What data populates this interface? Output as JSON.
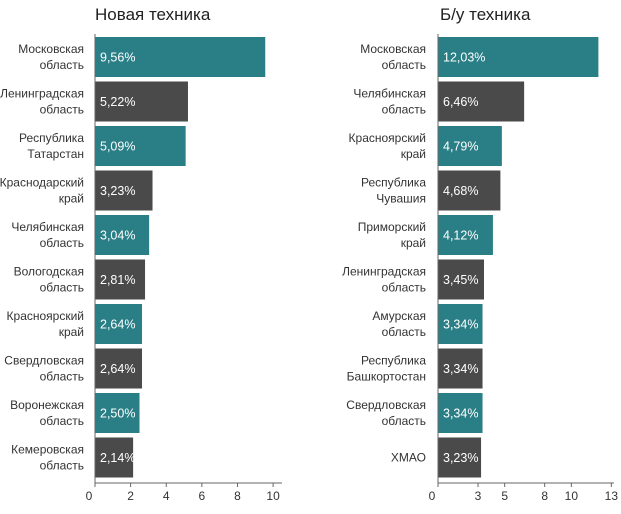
{
  "colors": {
    "teal": "#2a7f86",
    "dark": "#4a4a4a",
    "axis": "#666666",
    "text": "#333333"
  },
  "chart_data": [
    {
      "type": "bar",
      "orientation": "horizontal",
      "title": "Новая техника",
      "categories": [
        [
          "Московская",
          "область"
        ],
        [
          "Ленинградская",
          "область"
        ],
        [
          "Республика",
          "Татарстан"
        ],
        [
          "Краснодарский",
          "край"
        ],
        [
          "Челябинская",
          "область"
        ],
        [
          "Вологодская",
          "область"
        ],
        [
          "Красноярский",
          "край"
        ],
        [
          "Свердловская",
          "область"
        ],
        [
          "Воронежская",
          "область"
        ],
        [
          "Кемеровская",
          "область"
        ]
      ],
      "values": [
        9.56,
        5.22,
        5.09,
        3.23,
        3.04,
        2.81,
        2.64,
        2.64,
        2.5,
        2.14
      ],
      "value_labels": [
        "9,56%",
        "5,22%",
        "5,09%",
        "3,23%",
        "3,04%",
        "2,81%",
        "2,64%",
        "2,64%",
        "2,50%",
        "2,14%"
      ],
      "bar_colors": [
        "teal",
        "dark",
        "teal",
        "dark",
        "teal",
        "dark",
        "teal",
        "dark",
        "teal",
        "dark"
      ],
      "xlim": [
        0,
        10.5
      ],
      "xticks": [
        0,
        2,
        4,
        6,
        8,
        10
      ],
      "xtick_labels": [
        "0",
        "2",
        "4",
        "6",
        "8",
        "10"
      ],
      "grid": false
    },
    {
      "type": "bar",
      "orientation": "horizontal",
      "title": "Б/у техника",
      "categories": [
        [
          "Московская",
          "область"
        ],
        [
          "Челябинская",
          "область"
        ],
        [
          "Красноярский",
          "край"
        ],
        [
          "Республика",
          "Чувашия"
        ],
        [
          "Приморский",
          "край"
        ],
        [
          "Ленинградская",
          "область"
        ],
        [
          "Амурская",
          "область"
        ],
        [
          "Республика",
          "Башкортостан"
        ],
        [
          "Свердловская",
          "область"
        ],
        [
          "ХМАО"
        ]
      ],
      "values": [
        12.03,
        6.46,
        4.79,
        4.68,
        4.12,
        3.45,
        3.34,
        3.34,
        3.34,
        3.23
      ],
      "value_labels": [
        "12,03%",
        "6,46%",
        "4,79%",
        "4,68%",
        "4,12%",
        "3,45%",
        "3,34%",
        "3,34%",
        "3,34%",
        "3,23%"
      ],
      "bar_colors": [
        "teal",
        "dark",
        "teal",
        "dark",
        "teal",
        "dark",
        "teal",
        "dark",
        "teal",
        "dark"
      ],
      "xlim": [
        0,
        13.2
      ],
      "xticks": [
        0,
        3,
        5,
        8,
        10,
        13
      ],
      "xtick_labels": [
        "0",
        "3",
        "5",
        "8",
        "10",
        "13"
      ],
      "grid": false
    }
  ]
}
